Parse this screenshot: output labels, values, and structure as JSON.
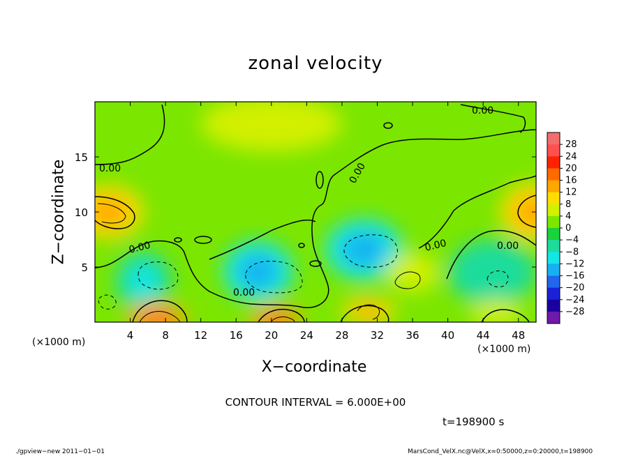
{
  "figure": {
    "title": "zonal velocity",
    "xlabel": "X−coordinate",
    "ylabel": "Z−coordinate",
    "x_unit_left": "(×1000 m)",
    "x_unit_right": "(×1000 m)",
    "contour_note": "CONTOUR INTERVAL = 6.000E+00",
    "time_label": "t=198900 s",
    "footer_left": "./gpview−new   2011−01−01",
    "footer_right": "MarsCond_VelX.nc@VelX,x=0:50000,z=0:20000,t=198900"
  },
  "chart_data": {
    "type": "heatmap",
    "title": "zonal velocity",
    "xlabel": "X−coordinate",
    "ylabel": "Z−coordinate",
    "x_unit": "(×1000 m)",
    "xlim": [
      0,
      50
    ],
    "ylim": [
      0,
      20
    ],
    "x_ticks": [
      4,
      8,
      12,
      16,
      20,
      24,
      28,
      32,
      36,
      40,
      44,
      48
    ],
    "y_ticks": [
      5,
      10,
      15
    ],
    "contour_interval": 6.0,
    "contour_labels": [
      "0.00",
      "0.00",
      "0.00",
      "0.00",
      "0.00",
      "0.00",
      "0.00"
    ],
    "colorbar": {
      "labels": [
        "28",
        "24",
        "20",
        "16",
        "12",
        "8",
        "4",
        "0",
        "−4",
        "−8",
        "−12",
        "−16",
        "−20",
        "−24",
        "−28"
      ],
      "levels": [
        28,
        24,
        20,
        16,
        12,
        8,
        4,
        0,
        -4,
        -8,
        -12,
        -16,
        -20,
        -24,
        -28
      ],
      "colors": [
        "#f26d6d",
        "#ff5050",
        "#ff2200",
        "#ff6a00",
        "#ffa600",
        "#ffdd00",
        "#d2f000",
        "#7be600",
        "#19d23c",
        "#1edc9c",
        "#14e6e6",
        "#18b0f0",
        "#2266ee",
        "#1a22d8",
        "#1a00a0",
        "#6e1aa8"
      ]
    },
    "background_value": 1,
    "features": [
      {
        "kind": "jet",
        "x": 5.5,
        "z": 3.7,
        "value": -8,
        "rx": 3.2,
        "rz": 2.8
      },
      {
        "kind": "jet",
        "x": 18.5,
        "z": 4.6,
        "value": -9,
        "rx": 4.0,
        "rz": 2.8
      },
      {
        "kind": "jet",
        "x": 30.5,
        "z": 6.6,
        "value": -9,
        "rx": 4.4,
        "rz": 2.8
      },
      {
        "kind": "jet",
        "x": 45.0,
        "z": 4.5,
        "value": -7,
        "rx": 5.0,
        "rz": 3.0
      },
      {
        "kind": "jet",
        "x": 7.0,
        "z": 0.3,
        "value": 14,
        "rx": 3.4,
        "rz": 1.4
      },
      {
        "kind": "jet",
        "x": 20.5,
        "z": 0.2,
        "value": 12,
        "rx": 3.0,
        "rz": 1.2
      },
      {
        "kind": "jet",
        "x": 31.0,
        "z": 1.0,
        "value": 8,
        "rx": 3.0,
        "rz": 1.2
      },
      {
        "kind": "jet",
        "x": 45.5,
        "z": 0.8,
        "value": 7,
        "rx": 3.0,
        "rz": 1.2
      },
      {
        "kind": "jet",
        "x": 1.5,
        "z": 10.0,
        "value": 10,
        "rx": 4.0,
        "rz": 2.4
      },
      {
        "kind": "jet",
        "x": 49.5,
        "z": 10.0,
        "value": 9,
        "rx": 3.5,
        "rz": 2.6
      },
      {
        "kind": "jet",
        "x": 36.0,
        "z": 4.5,
        "value": 7,
        "rx": 3.0,
        "rz": 1.8
      },
      {
        "kind": "jet",
        "x": 20.0,
        "z": 18.0,
        "value": 6,
        "rx": 8.0,
        "rz": 2.5
      }
    ]
  }
}
